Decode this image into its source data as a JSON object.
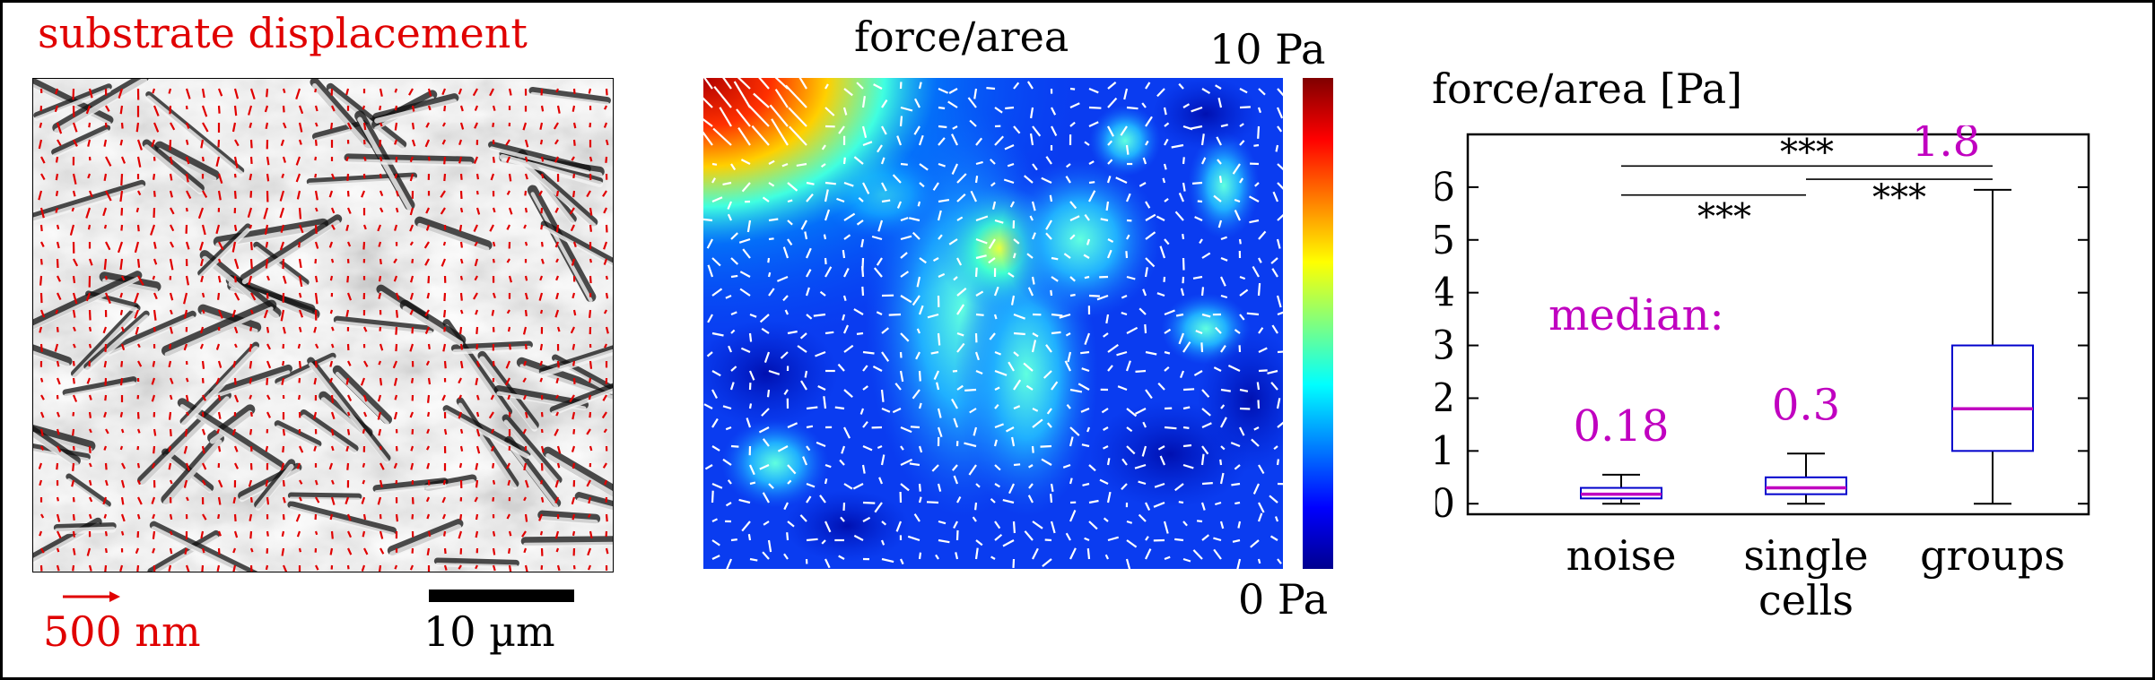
{
  "panel_a": {
    "title": "substrate displacement",
    "arrow_scale_label": "500 nm",
    "scale_bar_label": "10 µm",
    "arrow_color": "#e00000"
  },
  "panel_b": {
    "title": "force/area",
    "colorbar_max_label": "10 Pa",
    "colorbar_min_label": "0 Pa",
    "colormap": "jet"
  },
  "chart_data": {
    "type": "box",
    "title": "force/area [Pa]",
    "categories": [
      "noise",
      "single cells",
      "groups"
    ],
    "category_lines": [
      [
        "noise"
      ],
      [
        "single",
        "cells"
      ],
      [
        "groups"
      ]
    ],
    "ylim": [
      -0.2,
      7.0
    ],
    "yticks": [
      0,
      1,
      2,
      3,
      4,
      5,
      6
    ],
    "boxes": [
      {
        "whisker_low": 0.0,
        "q1": 0.1,
        "median": 0.18,
        "q3": 0.3,
        "whisker_high": 0.55,
        "median_label": "0.18"
      },
      {
        "whisker_low": 0.0,
        "q1": 0.18,
        "median": 0.3,
        "q3": 0.5,
        "whisker_high": 0.95,
        "median_label": "0.3"
      },
      {
        "whisker_low": 0.0,
        "q1": 1.0,
        "median": 1.8,
        "q3": 3.0,
        "whisker_high": 5.95,
        "median_label": "1.8"
      }
    ],
    "median_heading": "median:",
    "significance": [
      {
        "from": 0,
        "to": 2,
        "y": 6.4,
        "label": "***"
      },
      {
        "from": 1,
        "to": 2,
        "y": 6.15,
        "label": "***"
      },
      {
        "from": 0,
        "to": 1,
        "y": 5.85,
        "label": "***"
      }
    ],
    "box_color": "#0000cc",
    "median_color": "#c000c0"
  }
}
